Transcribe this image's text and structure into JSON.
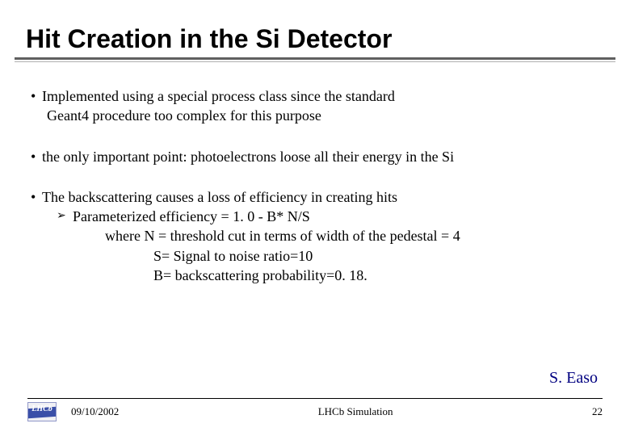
{
  "title": "Hit Creation in the Si Detector",
  "bullets": {
    "b1_l1": "Implemented using a special process class since the standard",
    "b1_l2": "Geant4 procedure too complex for this purpose",
    "b2": "the only important point: photoelectrons loose all their energy in the Si",
    "b3": "The backscattering causes a loss of efficiency in creating hits",
    "b3_sub_mark": "➢",
    "b3_sub": "Parameterized efficiency = 1. 0 - B*  N/S",
    "b3_d1": "where  N =  threshold cut in terms of width of the pedestal = 4",
    "b3_d2": "S= Signal to noise ratio=10",
    "b3_d3": "B= backscattering probability=0. 18."
  },
  "author": "S. Easo",
  "footer": {
    "logo_text": "LHCb",
    "date": "09/10/2002",
    "center": "LHCb Simulation",
    "page": "22"
  },
  "colors": {
    "author_color": "#000080"
  }
}
